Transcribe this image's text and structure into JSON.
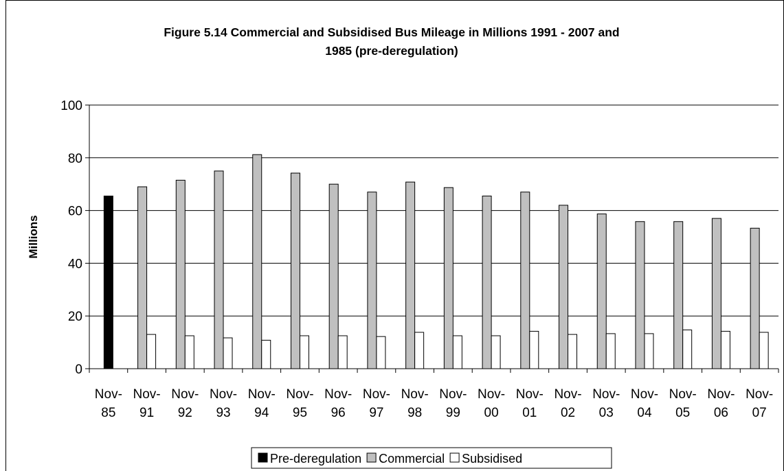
{
  "chart_data": {
    "type": "bar",
    "title": "Figure 5.14 Commercial and Subsidised Bus Mileage in Millions 1991 - 2007 and 1985 (pre-deregulation)",
    "title_lines": [
      "Figure 5.14 Commercial and Subsidised Bus Mileage in Millions 1991 - 2007 and",
      "1985 (pre-deregulation)"
    ],
    "xlabel": "",
    "ylabel": "Millions",
    "ylim": [
      0,
      100
    ],
    "yticks": [
      0,
      20,
      40,
      60,
      80,
      100
    ],
    "grid": true,
    "legend_position": "bottom",
    "categories": [
      "Nov-85",
      "Nov-91",
      "Nov-92",
      "Nov-93",
      "Nov-94",
      "Nov-95",
      "Nov-96",
      "Nov-97",
      "Nov-98",
      "Nov-99",
      "Nov-00",
      "Nov-01",
      "Nov-02",
      "Nov-03",
      "Nov-04",
      "Nov-05",
      "Nov-06",
      "Nov-07"
    ],
    "category_lines": [
      [
        "Nov-",
        "85"
      ],
      [
        "Nov-",
        "91"
      ],
      [
        "Nov-",
        "92"
      ],
      [
        "Nov-",
        "93"
      ],
      [
        "Nov-",
        "94"
      ],
      [
        "Nov-",
        "95"
      ],
      [
        "Nov-",
        "96"
      ],
      [
        "Nov-",
        "97"
      ],
      [
        "Nov-",
        "98"
      ],
      [
        "Nov-",
        "99"
      ],
      [
        "Nov-",
        "00"
      ],
      [
        "Nov-",
        "01"
      ],
      [
        "Nov-",
        "02"
      ],
      [
        "Nov-",
        "03"
      ],
      [
        "Nov-",
        "04"
      ],
      [
        "Nov-",
        "05"
      ],
      [
        "Nov-",
        "06"
      ],
      [
        "Nov-",
        "07"
      ]
    ],
    "series": [
      {
        "name": "Pre-deregulation",
        "color": "#000000",
        "values": [
          65.5,
          null,
          null,
          null,
          null,
          null,
          null,
          null,
          null,
          null,
          null,
          null,
          null,
          null,
          null,
          null,
          null,
          null
        ]
      },
      {
        "name": "Commercial",
        "color": "#c0c0c0",
        "values": [
          null,
          69,
          71.5,
          75,
          81.2,
          74.2,
          70,
          67,
          70.8,
          68.7,
          65.5,
          67,
          62,
          58.7,
          55.8,
          55.8,
          57,
          53.3
        ]
      },
      {
        "name": "Subsidised",
        "color": "#ffffff",
        "values": [
          null,
          13,
          12.5,
          11.7,
          10.8,
          12.5,
          12.5,
          12.2,
          13.8,
          12.5,
          12.5,
          14.2,
          13,
          13.3,
          13.3,
          14.7,
          14.2,
          13.8
        ]
      }
    ]
  }
}
